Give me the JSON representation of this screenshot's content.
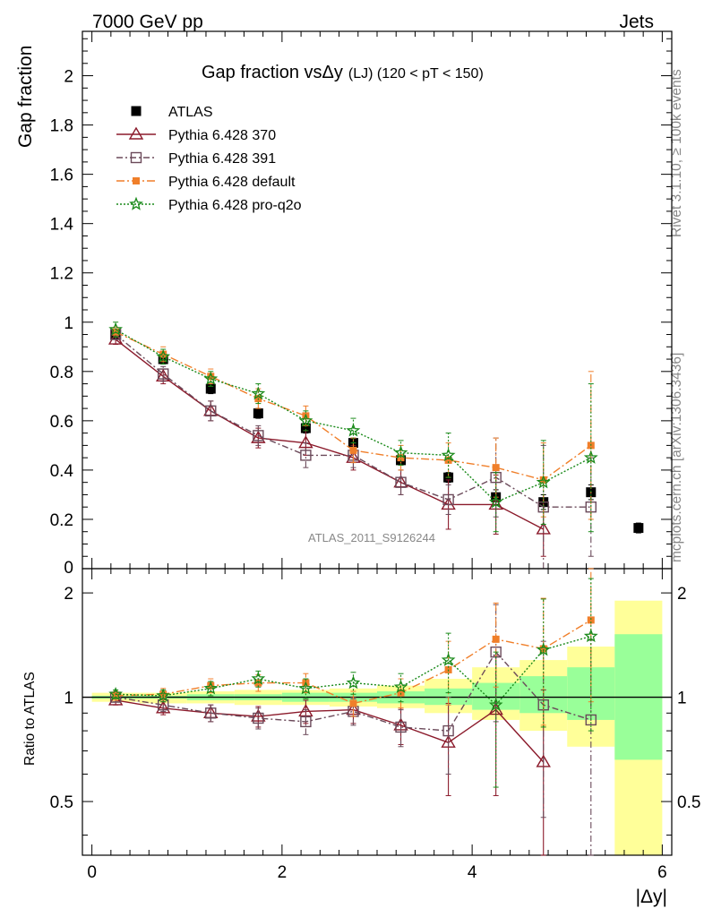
{
  "header": {
    "left": "7000 GeV pp",
    "right": "Jets",
    "side_top": "Rivet 3.1.10, ≥ 100k events",
    "side_bottom": "mcplots.cern.ch [arXiv:1306.3436]",
    "watermark": "ATLAS_2011_S9126244"
  },
  "colors": {
    "ATLAS": "#000000",
    "p370": "#8b1a2b",
    "p391": "#6b4a5a",
    "pdefault": "#f07f2a",
    "pq2o": "#1a8a1a",
    "band_yellow": "#ffff99",
    "band_green": "#99ff99"
  },
  "chart_data": [
    {
      "type": "scatter",
      "panel": "main",
      "title": "Gap fraction vsΔy (LJ) (120 < pT < 150)",
      "title_main": "Gap fraction vsΔy",
      "title_sub": "(LJ) (120 < pT < 150)",
      "ylabel": "Gap fraction",
      "xlabel": "",
      "xlim": [
        -0.1,
        6.1
      ],
      "ylim": [
        0,
        2.18
      ],
      "yticks": [
        0.2,
        0.4,
        0.6,
        0.8,
        1,
        1.2,
        1.4,
        1.6,
        1.8,
        2
      ],
      "ytick_labels": [
        "0.2",
        "0.4",
        "0.6",
        "0.8",
        "1",
        "1.2",
        "1.4",
        "1.6",
        "1.8",
        "2"
      ],
      "ytick_zero_label": "0",
      "legend_position": "top-left",
      "x": [
        0.25,
        0.75,
        1.25,
        1.75,
        2.25,
        2.75,
        3.25,
        3.75,
        4.25,
        4.75,
        5.25,
        5.75
      ],
      "series": [
        {
          "name": "ATLAS",
          "key": "ATLAS",
          "marker": "square",
          "line": "none",
          "values": [
            0.95,
            0.85,
            0.73,
            0.63,
            0.57,
            0.51,
            0.44,
            0.37,
            0.29,
            0.27,
            0.31,
            0.165
          ],
          "errors": [
            0.02,
            0.02,
            0.02,
            0.02,
            0.02,
            0.02,
            0.02,
            0.02,
            0.03,
            0.03,
            0.03,
            0.02
          ]
        },
        {
          "name": "Pythia 6.428 370",
          "key": "p370",
          "marker": "triangle-open",
          "line": "solid",
          "values": [
            0.93,
            0.78,
            0.64,
            0.53,
            0.51,
            0.45,
            0.35,
            0.26,
            0.26,
            0.16
          ],
          "errors": [
            0.02,
            0.03,
            0.04,
            0.04,
            0.05,
            0.05,
            0.05,
            0.1,
            0.12,
            0.11
          ]
        },
        {
          "name": "Pythia 6.428 391",
          "key": "p391",
          "marker": "square-open",
          "line": "dashdot",
          "values": [
            0.95,
            0.79,
            0.64,
            0.54,
            0.46,
            0.46,
            0.35,
            0.28,
            0.37,
            0.25,
            0.25
          ],
          "errors": [
            0.02,
            0.03,
            0.04,
            0.04,
            0.05,
            0.05,
            0.05,
            0.06,
            0.16,
            0.25,
            0.2
          ]
        },
        {
          "name": "Pythia 6.428 default",
          "key": "pdefault",
          "marker": "square-filled-small",
          "line": "dashdot-long",
          "values": [
            0.96,
            0.87,
            0.78,
            0.69,
            0.62,
            0.48,
            0.45,
            0.44,
            0.41,
            0.36,
            0.5
          ],
          "errors": [
            0.02,
            0.03,
            0.03,
            0.04,
            0.04,
            0.05,
            0.05,
            0.07,
            0.12,
            0.15,
            0.3
          ]
        },
        {
          "name": "Pythia 6.428 pro-q2o",
          "key": "pq2o",
          "marker": "star",
          "line": "dotted",
          "values": [
            0.97,
            0.86,
            0.77,
            0.71,
            0.6,
            0.56,
            0.47,
            0.46,
            0.27,
            0.35,
            0.45
          ],
          "errors": [
            0.03,
            0.03,
            0.03,
            0.04,
            0.04,
            0.05,
            0.05,
            0.09,
            0.12,
            0.17,
            0.3
          ]
        }
      ]
    },
    {
      "type": "scatter",
      "panel": "ratio",
      "ylabel": "Ratio to ATLAS",
      "xlabel": "|Δy|",
      "xlim": [
        -0.1,
        6.1
      ],
      "ylim": [
        0.35,
        2.35
      ],
      "log_y": true,
      "yticks": [
        0.5,
        1,
        2
      ],
      "ytick_labels": [
        "0.5",
        "1",
        "2"
      ],
      "xticks": [
        0,
        2,
        4,
        6
      ],
      "xtick_labels": [
        "0",
        "2",
        "4",
        "6"
      ],
      "x": [
        0.25,
        0.75,
        1.25,
        1.75,
        2.25,
        2.75,
        3.25,
        3.75,
        4.25,
        4.75,
        5.25
      ],
      "reference_line": 1,
      "bands": {
        "edges": [
          0,
          0.5,
          1.0,
          1.5,
          2.0,
          2.5,
          3.0,
          3.5,
          4.0,
          4.5,
          5.0,
          5.5,
          6.0
        ],
        "yellow_low": [
          0.97,
          0.96,
          0.96,
          0.95,
          0.95,
          0.94,
          0.93,
          0.9,
          0.86,
          0.8,
          0.72,
          0.35
        ],
        "yellow_high": [
          1.03,
          1.03,
          1.04,
          1.05,
          1.05,
          1.06,
          1.08,
          1.13,
          1.22,
          1.28,
          1.4,
          1.9
        ],
        "green_low": [
          0.99,
          0.99,
          0.98,
          0.98,
          0.97,
          0.97,
          0.96,
          0.95,
          0.92,
          0.9,
          0.86,
          0.66
        ],
        "green_high": [
          1.01,
          1.01,
          1.02,
          1.02,
          1.03,
          1.03,
          1.04,
          1.06,
          1.1,
          1.15,
          1.22,
          1.52
        ]
      },
      "series": [
        {
          "name": "Pythia 6.428 370",
          "key": "p370",
          "marker": "triangle-open",
          "line": "solid",
          "values": [
            0.98,
            0.93,
            0.9,
            0.88,
            0.91,
            0.92,
            0.83,
            0.74,
            0.92,
            0.65
          ],
          "errors": [
            0.03,
            0.04,
            0.05,
            0.06,
            0.07,
            0.08,
            0.1,
            0.22,
            0.4,
            0.4
          ]
        },
        {
          "name": "Pythia 6.428 391",
          "key": "p391",
          "marker": "square-open",
          "line": "dashdot",
          "values": [
            1.0,
            0.95,
            0.9,
            0.87,
            0.85,
            0.91,
            0.82,
            0.8,
            1.35,
            0.95,
            0.86
          ],
          "errors": [
            0.03,
            0.04,
            0.05,
            0.06,
            0.07,
            0.08,
            0.1,
            0.2,
            0.5,
            0.5,
            0.6
          ]
        },
        {
          "name": "Pythia 6.428 default",
          "key": "pdefault",
          "marker": "square-filled-small",
          "line": "dashdot-long",
          "values": [
            1.01,
            1.02,
            1.08,
            1.1,
            1.1,
            0.96,
            1.03,
            1.2,
            1.47,
            1.38,
            1.67
          ],
          "errors": [
            0.03,
            0.04,
            0.05,
            0.06,
            0.07,
            0.08,
            0.1,
            0.25,
            0.4,
            0.55,
            0.7
          ]
        },
        {
          "name": "Pythia 6.428 pro-q2o",
          "key": "pq2o",
          "marker": "star",
          "line": "dotted",
          "values": [
            1.02,
            1.01,
            1.06,
            1.13,
            1.06,
            1.1,
            1.07,
            1.28,
            0.95,
            1.37,
            1.5
          ],
          "errors": [
            0.03,
            0.04,
            0.05,
            0.06,
            0.07,
            0.08,
            0.1,
            0.25,
            0.4,
            0.55,
            0.7
          ]
        }
      ]
    }
  ]
}
